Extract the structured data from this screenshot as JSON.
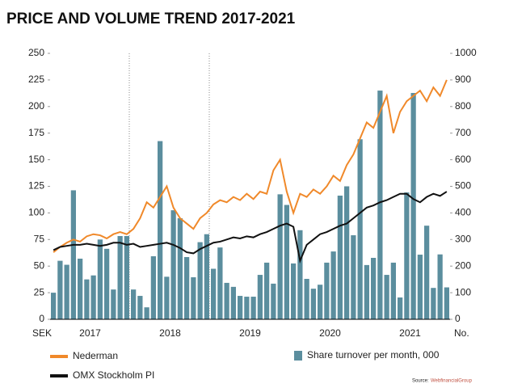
{
  "chart_data": {
    "type": "bar",
    "title": "PRICE AND VOLUME TREND 2017-2021",
    "ylabel": "SEK",
    "y2label": "No.",
    "categories": [
      null,
      null,
      null,
      null,
      null,
      null,
      "2017",
      null,
      null,
      null,
      null,
      null,
      null,
      null,
      null,
      null,
      null,
      null,
      "2018",
      null,
      null,
      null,
      null,
      null,
      null,
      null,
      null,
      null,
      null,
      null,
      "2019",
      null,
      null,
      null,
      null,
      null,
      null,
      null,
      null,
      null,
      null,
      null,
      "2020",
      null,
      null,
      null,
      null,
      null,
      null,
      null,
      null,
      null,
      null,
      null,
      "2021",
      null,
      null,
      null,
      null,
      null
    ],
    "ylim": [
      0,
      250
    ],
    "yticks": [
      0,
      25,
      50,
      75,
      100,
      125,
      150,
      175,
      200,
      225,
      250
    ],
    "y2lim": [
      0,
      1000
    ],
    "y2ticks": [
      0,
      100,
      200,
      300,
      400,
      500,
      600,
      700,
      800,
      900,
      1000
    ],
    "series": [
      {
        "name": "Share turnover per month, 000",
        "type": "bar",
        "axis": "y2",
        "color": "#5b8e9e",
        "values": [
          100,
          220,
          205,
          485,
          228,
          150,
          165,
          300,
          265,
          112,
          313,
          313,
          112,
          88,
          45,
          237,
          670,
          160,
          410,
          380,
          234,
          158,
          290,
          320,
          190,
          270,
          137,
          122,
          88,
          85,
          85,
          167,
          213,
          134,
          470,
          430,
          210,
          335,
          152,
          115,
          130,
          213,
          255,
          465,
          500,
          316,
          677,
          204,
          231,
          860,
          167,
          213,
          82,
          477,
          851,
          243,
          352,
          118,
          244,
          120
        ]
      },
      {
        "name": "Nederman",
        "type": "line",
        "color": "#f0892a",
        "values": [
          63,
          68,
          72,
          75,
          73,
          78,
          80,
          79,
          76,
          80,
          82,
          80,
          85,
          95,
          110,
          105,
          115,
          125,
          105,
          95,
          90,
          85,
          95,
          100,
          108,
          112,
          110,
          115,
          112,
          118,
          113,
          120,
          118,
          140,
          150,
          120,
          100,
          118,
          115,
          122,
          118,
          125,
          135,
          130,
          145,
          155,
          170,
          185,
          180,
          195,
          210,
          175,
          195,
          205,
          210,
          215,
          205,
          218,
          210,
          225
        ]
      },
      {
        "name": "OMX Stockholm PI",
        "type": "line",
        "color": "#111111",
        "values": [
          65,
          68,
          69,
          70,
          70,
          71,
          70,
          69,
          70,
          72,
          72,
          70,
          71,
          68,
          69,
          70,
          71,
          72,
          70,
          67,
          63,
          62,
          66,
          69,
          72,
          73,
          75,
          77,
          76,
          78,
          77,
          80,
          82,
          85,
          88,
          90,
          87,
          55,
          70,
          75,
          80,
          82,
          85,
          88,
          90,
          95,
          100,
          105,
          107,
          110,
          112,
          115,
          118,
          118,
          113,
          110,
          115,
          118,
          116,
          120
        ]
      }
    ],
    "source_label": "Source:",
    "source": "WebfinancialGroup"
  }
}
